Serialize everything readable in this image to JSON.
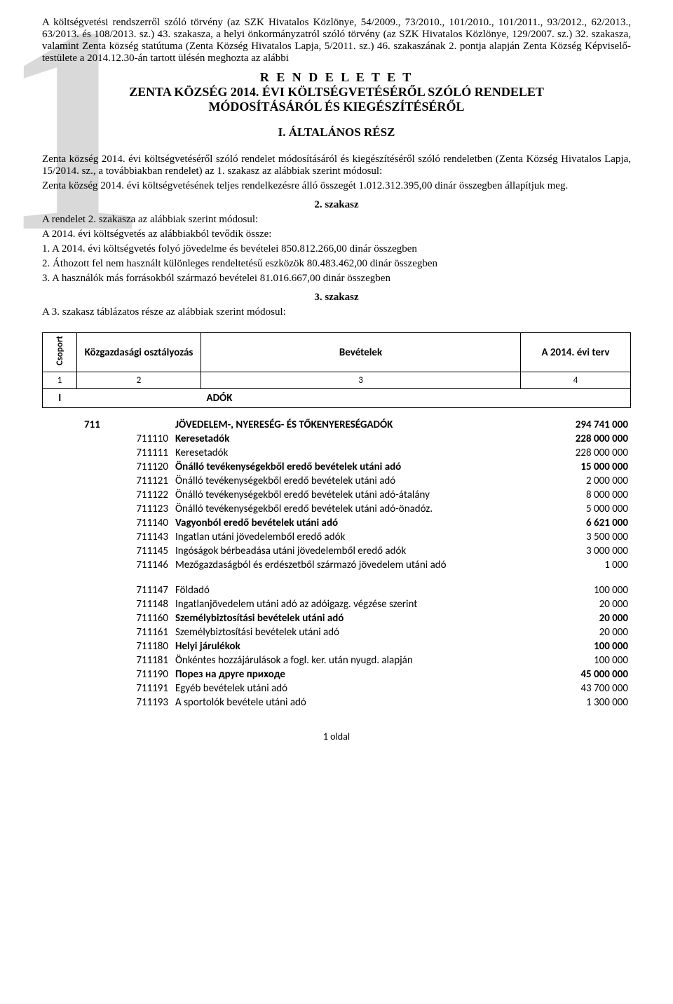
{
  "bigNumber": "1",
  "intro1": "A költségvetési rendszerről szóló törvény (az SZK Hivatalos Közlönye, 54/2009., 73/2010., 101/2010., 101/2011., 93/2012., 62/2013., 63/2013. és 108/2013. sz.) 43. szakasza, a helyi önkormányzatról szóló törvény (az SZK Hivatalos Közlönye, 129/2007. sz.) 32. szakasza, valamint Zenta község statútuma (Zenta Község Hivatalos Lapja, 5/2011. sz.) 46. szakaszának 2. pontja alapján Zenta Község Képviselő-testülete a 2014.12.30-án tartott ülésén meghozta az alábbi",
  "titleLine1": "R E N D E L E T E T",
  "titleLine2": "ZENTA KÖZSÉG 2014. ÉVI KÖLTSÉGVETÉSÉRŐL SZÓLÓ RENDELET",
  "titleLine3": "MÓDOSÍTÁSÁRÓL ÉS KIEGÉSZÍTÉSÉRŐL",
  "subhead": "I. ÁLTALÁNOS RÉSZ",
  "intro2a": "Zenta község 2014. évi költségvetéséről szóló rendelet módosításáról és kiegészítéséről szóló rendeletben (Zenta Község Hivatalos Lapja, 15/2014. sz., a továbbiakban rendelet) az 1. szakasz az alábbiak szerint módosul:",
  "intro2b": "Zenta község 2014. évi költségvetésének teljes rendelkezésre álló összegét 1.012.312.395,00 dinár összegben állapítjuk meg.",
  "szakasz2": "2. szakasz",
  "sz2a": "A rendelet 2. szakasza az alábbiak szerint módosul:",
  "sz2b": "A 2014. évi költségvetés az alábbiakból tevődik össze:",
  "sz2l1": "1. A 2014. évi költségvetés folyó jövedelme és bevételei 850.812.266,00 dinár összegben",
  "sz2l2": "2. Áthozott fel nem használt különleges rendeltetésű eszközök 80.483.462,00 dinár összegben",
  "sz2l3": "3. A használók más forrásokból származó bevételei 81.016.667,00 dinár összegben",
  "szakasz3": "3. szakasz",
  "sz3a": "A 3. szakasz táblázatos része az alábbiak szerint módosul:",
  "hdr": {
    "csoport": "Csoport",
    "kozgazd": "Közgazdasági osztályozás",
    "bevetelek": "Bevételek",
    "terv": "A 2014. évi terv",
    "c1": "1",
    "c2": "2",
    "c3": "3",
    "c4": "4",
    "I": "I",
    "adok": "ADÓK"
  },
  "rows": [
    {
      "code": "711",
      "label": "JÖVEDELEM-, NYERESÉG- ÉS TŐKENYERESÉGADÓK",
      "amount": "294 741 000",
      "bold": true,
      "groupCode": true
    },
    {
      "code": "711110",
      "label": "Keresetadók",
      "amount": "228 000 000",
      "bold": true
    },
    {
      "code": "711111",
      "label": "Keresetadók",
      "amount": "228 000 000"
    },
    {
      "code": "711120",
      "label": "Önálló tevékenységekből eredő bevételek utáni adó",
      "amount": "15 000 000",
      "bold": true
    },
    {
      "code": "711121",
      "label": "Önálló tevékenységekből eredő bevételek utáni adó",
      "amount": "2 000 000"
    },
    {
      "code": "711122",
      "label": "Önálló tevékenységekből eredő bevételek utáni adó-átalány",
      "amount": "8 000 000"
    },
    {
      "code": "711123",
      "label": "Önálló tevékenységekből eredő bevételek utáni adó-önadóz.",
      "amount": "5 000 000"
    },
    {
      "code": "711140",
      "label": "Vagyonból eredő bevételek utáni adó",
      "amount": "6 621 000",
      "bold": true
    },
    {
      "code": "711143",
      "label": "Ingatlan utáni jövedelemből eredő adók",
      "amount": "3 500 000"
    },
    {
      "code": "711145",
      "label": "Ingóságok bérbeadása utáni jövedelemből eredő adók",
      "amount": "3 000 000"
    },
    {
      "code": "711146",
      "label": "Mezőgazdaságból és erdészetből származó jövedelem utáni adó",
      "amount": "1 000"
    },
    {
      "gap": true
    },
    {
      "code": "711147",
      "label": "Földadó",
      "amount": "100 000"
    },
    {
      "code": "711148",
      "label": "Ingatlanjövedelem utáni adó az adóigazg. végzése szerint",
      "amount": "20 000"
    },
    {
      "code": "711160",
      "label": "Személybiztosítási bevételek utáni adó",
      "amount": "20 000",
      "bold": true
    },
    {
      "code": "711161",
      "label": "Személybiztosítási bevételek utáni adó",
      "amount": "20 000"
    },
    {
      "code": "711180",
      "label": "Helyi járulékok",
      "amount": "100 000",
      "bold": true
    },
    {
      "code": "711181",
      "label": "Önkéntes hozzájárulások a fogl. ker. után nyugd. alapján",
      "amount": "100 000"
    },
    {
      "code": "711190",
      "label": "Порез на друге приходе",
      "amount": "45 000 000",
      "bold": true
    },
    {
      "code": "711191",
      "label": "Egyéb bevételek utáni adó",
      "amount": "43 700 000"
    },
    {
      "code": "711193",
      "label": "A sportolók bevétele utáni adó",
      "amount": "1 300 000"
    }
  ],
  "pagefoot": "1 oldal"
}
